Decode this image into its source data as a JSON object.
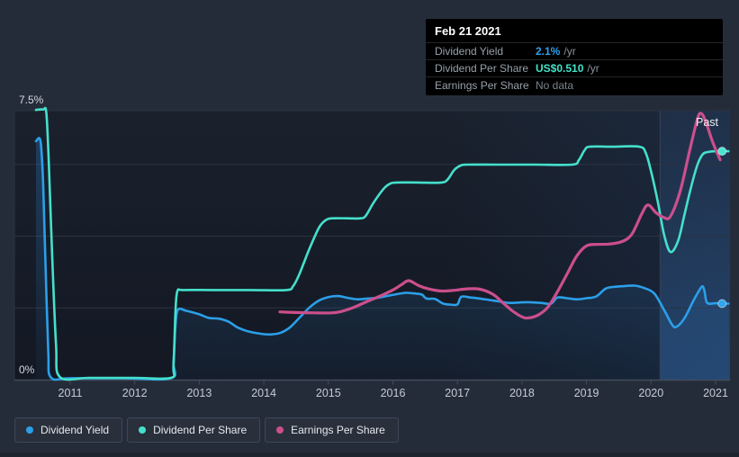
{
  "page": {
    "background": "#252c39"
  },
  "past_label": "Past",
  "tooltip": {
    "date": "Feb 21 2021",
    "rows": [
      {
        "label": "Dividend Yield",
        "value": "2.1%",
        "suffix": "/yr",
        "value_color": "#2ea1f0",
        "bold": true
      },
      {
        "label": "Dividend Per Share",
        "value": "US$0.510",
        "suffix": "/yr",
        "value_color": "#40e3c9",
        "bold": true
      },
      {
        "label": "Earnings Per Share",
        "value": "No data",
        "suffix": "",
        "value_color": "#7b838d",
        "bold": false
      }
    ]
  },
  "legend": [
    {
      "label": "Dividend Yield",
      "color": "#2b9fe8"
    },
    {
      "label": "Dividend Per Share",
      "color": "#45e0cb"
    },
    {
      "label": "Earnings Per Share",
      "color": "#cc4f8c"
    }
  ],
  "chart_data": {
    "type": "line",
    "x_axis": {
      "tick_labels": [
        "2011",
        "2012",
        "2013",
        "2014",
        "2015",
        "2016",
        "2017",
        "2018",
        "2019",
        "2020",
        "2021"
      ],
      "tick_years": [
        2011,
        2012,
        2013,
        2014,
        2015,
        2016,
        2017,
        2018,
        2019,
        2020,
        2021
      ],
      "range": [
        2010.45,
        2021.22
      ]
    },
    "y_axis": {
      "label_top": "7.5%",
      "label_bottom": "0%",
      "ylim_pct": [
        0,
        7.5
      ],
      "gridlines_pct": [
        7.5,
        6,
        4,
        2
      ],
      "usd_to_pct": 12.49
    },
    "past_region_start_year": 2020.14,
    "hover_marker_year": 2021.1,
    "series": [
      {
        "name": "Dividend Yield",
        "unit": "%",
        "color": "#2b9fe8",
        "fill": true,
        "end_dot": true,
        "points": [
          [
            2010.47,
            6.65
          ],
          [
            2010.54,
            6.65
          ],
          [
            2010.58,
            5.5
          ],
          [
            2010.62,
            3.0
          ],
          [
            2010.66,
            0.8
          ],
          [
            2010.7,
            0.06
          ],
          [
            2011.0,
            0.04
          ],
          [
            2011.8,
            0.04
          ],
          [
            2012.56,
            0.04
          ],
          [
            2012.6,
            0.5
          ],
          [
            2012.63,
            1.5
          ],
          [
            2012.67,
            1.95
          ],
          [
            2012.8,
            1.92
          ],
          [
            2013.0,
            1.82
          ],
          [
            2013.15,
            1.72
          ],
          [
            2013.3,
            1.7
          ],
          [
            2013.45,
            1.62
          ],
          [
            2013.6,
            1.45
          ],
          [
            2013.75,
            1.35
          ],
          [
            2013.95,
            1.28
          ],
          [
            2014.1,
            1.26
          ],
          [
            2014.25,
            1.3
          ],
          [
            2014.4,
            1.45
          ],
          [
            2014.55,
            1.72
          ],
          [
            2014.7,
            2.0
          ],
          [
            2014.85,
            2.2
          ],
          [
            2015.0,
            2.3
          ],
          [
            2015.15,
            2.33
          ],
          [
            2015.3,
            2.28
          ],
          [
            2015.45,
            2.24
          ],
          [
            2015.6,
            2.26
          ],
          [
            2015.75,
            2.28
          ],
          [
            2015.9,
            2.33
          ],
          [
            2016.05,
            2.38
          ],
          [
            2016.2,
            2.42
          ],
          [
            2016.35,
            2.4
          ],
          [
            2016.45,
            2.37
          ],
          [
            2016.52,
            2.26
          ],
          [
            2016.65,
            2.25
          ],
          [
            2016.78,
            2.12
          ],
          [
            2016.9,
            2.09
          ],
          [
            2017.0,
            2.1
          ],
          [
            2017.06,
            2.31
          ],
          [
            2017.2,
            2.29
          ],
          [
            2017.35,
            2.26
          ],
          [
            2017.5,
            2.22
          ],
          [
            2017.65,
            2.18
          ],
          [
            2017.8,
            2.14
          ],
          [
            2017.95,
            2.15
          ],
          [
            2018.1,
            2.16
          ],
          [
            2018.3,
            2.14
          ],
          [
            2018.45,
            2.12
          ],
          [
            2018.55,
            2.29
          ],
          [
            2018.7,
            2.27
          ],
          [
            2018.85,
            2.24
          ],
          [
            2019.0,
            2.27
          ],
          [
            2019.15,
            2.32
          ],
          [
            2019.3,
            2.54
          ],
          [
            2019.45,
            2.59
          ],
          [
            2019.6,
            2.61
          ],
          [
            2019.75,
            2.62
          ],
          [
            2019.9,
            2.55
          ],
          [
            2020.05,
            2.4
          ],
          [
            2020.2,
            1.95
          ],
          [
            2020.33,
            1.52
          ],
          [
            2020.4,
            1.48
          ],
          [
            2020.52,
            1.72
          ],
          [
            2020.65,
            2.18
          ],
          [
            2020.75,
            2.5
          ],
          [
            2020.8,
            2.6
          ],
          [
            2020.83,
            2.45
          ],
          [
            2020.87,
            2.14
          ],
          [
            2021.0,
            2.13
          ],
          [
            2021.2,
            2.12
          ]
        ]
      },
      {
        "name": "Dividend Per Share",
        "unit": "US$",
        "color": "#45e0cb",
        "fill": false,
        "end_dot": true,
        "points": [
          [
            2010.47,
            0.602
          ],
          [
            2010.58,
            0.603
          ],
          [
            2010.63,
            0.595
          ],
          [
            2010.67,
            0.48
          ],
          [
            2010.72,
            0.28
          ],
          [
            2010.78,
            0.08
          ],
          [
            2010.84,
            0.006
          ],
          [
            2011.3,
            0.004
          ],
          [
            2012.0,
            0.004
          ],
          [
            2012.56,
            0.004
          ],
          [
            2012.6,
            0.03
          ],
          [
            2012.63,
            0.15
          ],
          [
            2012.66,
            0.197
          ],
          [
            2012.75,
            0.2
          ],
          [
            2013.2,
            0.2
          ],
          [
            2013.8,
            0.2
          ],
          [
            2014.35,
            0.2
          ],
          [
            2014.45,
            0.208
          ],
          [
            2014.55,
            0.235
          ],
          [
            2014.7,
            0.29
          ],
          [
            2014.85,
            0.338
          ],
          [
            2014.95,
            0.355
          ],
          [
            2015.05,
            0.36
          ],
          [
            2015.3,
            0.36
          ],
          [
            2015.5,
            0.36
          ],
          [
            2015.58,
            0.366
          ],
          [
            2015.7,
            0.395
          ],
          [
            2015.85,
            0.425
          ],
          [
            2015.95,
            0.437
          ],
          [
            2016.05,
            0.44
          ],
          [
            2016.4,
            0.44
          ],
          [
            2016.75,
            0.44
          ],
          [
            2016.85,
            0.447
          ],
          [
            2016.95,
            0.468
          ],
          [
            2017.05,
            0.478
          ],
          [
            2017.15,
            0.48
          ],
          [
            2017.6,
            0.48
          ],
          [
            2018.2,
            0.48
          ],
          [
            2018.78,
            0.48
          ],
          [
            2018.88,
            0.49
          ],
          [
            2018.97,
            0.512
          ],
          [
            2019.05,
            0.52
          ],
          [
            2019.4,
            0.52
          ],
          [
            2019.82,
            0.52
          ],
          [
            2019.92,
            0.505
          ],
          [
            2020.0,
            0.465
          ],
          [
            2020.1,
            0.4
          ],
          [
            2020.2,
            0.325
          ],
          [
            2020.3,
            0.285
          ],
          [
            2020.42,
            0.31
          ],
          [
            2020.52,
            0.37
          ],
          [
            2020.62,
            0.43
          ],
          [
            2020.72,
            0.48
          ],
          [
            2020.8,
            0.503
          ],
          [
            2020.88,
            0.508
          ],
          [
            2021.0,
            0.51
          ],
          [
            2021.2,
            0.51
          ]
        ]
      },
      {
        "name": "Earnings Per Share",
        "unit": "pct_equivalent_hidden_scale",
        "color": "#cc4f8c",
        "fill": false,
        "end_dot": false,
        "points": [
          [
            2014.25,
            1.89
          ],
          [
            2014.5,
            1.87
          ],
          [
            2014.8,
            1.86
          ],
          [
            2015.05,
            1.86
          ],
          [
            2015.2,
            1.9
          ],
          [
            2015.4,
            2.02
          ],
          [
            2015.6,
            2.18
          ],
          [
            2015.8,
            2.33
          ],
          [
            2016.0,
            2.5
          ],
          [
            2016.15,
            2.67
          ],
          [
            2016.25,
            2.76
          ],
          [
            2016.4,
            2.62
          ],
          [
            2016.55,
            2.53
          ],
          [
            2016.75,
            2.47
          ],
          [
            2016.95,
            2.49
          ],
          [
            2017.15,
            2.53
          ],
          [
            2017.35,
            2.52
          ],
          [
            2017.55,
            2.38
          ],
          [
            2017.7,
            2.15
          ],
          [
            2017.85,
            1.92
          ],
          [
            2018.0,
            1.75
          ],
          [
            2018.1,
            1.72
          ],
          [
            2018.25,
            1.8
          ],
          [
            2018.4,
            2.02
          ],
          [
            2018.55,
            2.45
          ],
          [
            2018.7,
            2.95
          ],
          [
            2018.85,
            3.45
          ],
          [
            2019.0,
            3.73
          ],
          [
            2019.15,
            3.77
          ],
          [
            2019.35,
            3.78
          ],
          [
            2019.55,
            3.85
          ],
          [
            2019.7,
            4.05
          ],
          [
            2019.85,
            4.6
          ],
          [
            2019.95,
            4.87
          ],
          [
            2020.08,
            4.65
          ],
          [
            2020.2,
            4.52
          ],
          [
            2020.3,
            4.55
          ],
          [
            2020.45,
            5.25
          ],
          [
            2020.6,
            6.4
          ],
          [
            2020.72,
            7.28
          ],
          [
            2020.78,
            7.42
          ],
          [
            2020.85,
            7.18
          ],
          [
            2020.95,
            6.65
          ],
          [
            2021.07,
            6.13
          ]
        ]
      }
    ]
  }
}
